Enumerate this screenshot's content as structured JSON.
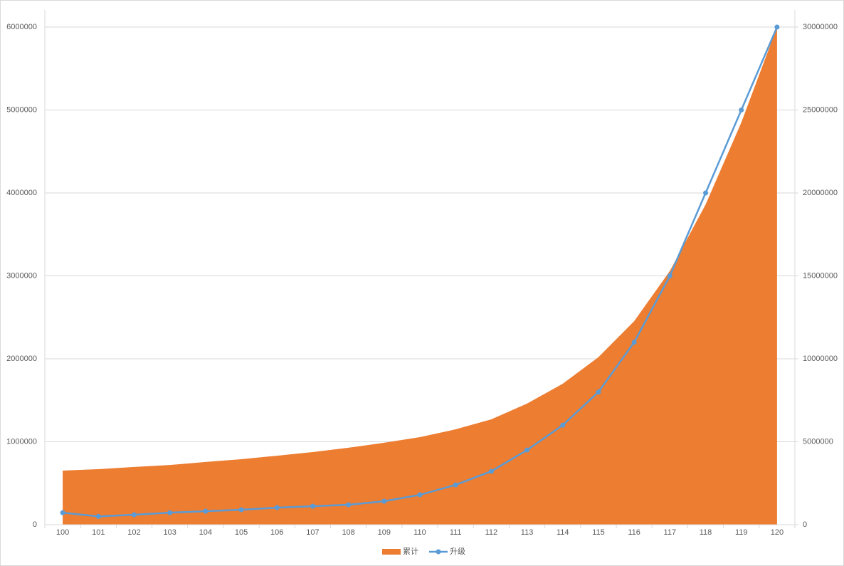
{
  "chart_data": {
    "type": "combo",
    "categories": [
      "100",
      "101",
      "102",
      "103",
      "104",
      "105",
      "106",
      "107",
      "108",
      "109",
      "110",
      "111",
      "112",
      "113",
      "114",
      "115",
      "116",
      "117",
      "118",
      "119",
      "120"
    ],
    "series": [
      {
        "name": "累计",
        "type": "area",
        "axis": "y2",
        "color": "#ed7d31",
        "values": [
          3260000,
          3350000,
          3480000,
          3600000,
          3780000,
          3950000,
          4160000,
          4380000,
          4640000,
          4940000,
          5280000,
          5750000,
          6350000,
          7300000,
          8500000,
          10100000,
          12270000,
          15300000,
          19300000,
          24250000,
          30000000
        ]
      },
      {
        "name": "升级",
        "type": "line",
        "axis": "y",
        "color": "#5b9bd5",
        "values": [
          145000,
          100000,
          120000,
          145000,
          163000,
          180000,
          206000,
          223000,
          240000,
          283000,
          360000,
          480000,
          644000,
          900000,
          1200000,
          1600000,
          2200000,
          3000000,
          4000000,
          5000000,
          6000000
        ]
      }
    ],
    "ylim": [
      0,
      6000000
    ],
    "yticks": [
      0,
      1000000,
      2000000,
      3000000,
      4000000,
      5000000,
      6000000
    ],
    "y2lim": [
      0,
      30000000
    ],
    "y2ticks": [
      0,
      5000000,
      10000000,
      15000000,
      20000000,
      25000000,
      30000000
    ],
    "grid": true,
    "legend": "bottom"
  }
}
